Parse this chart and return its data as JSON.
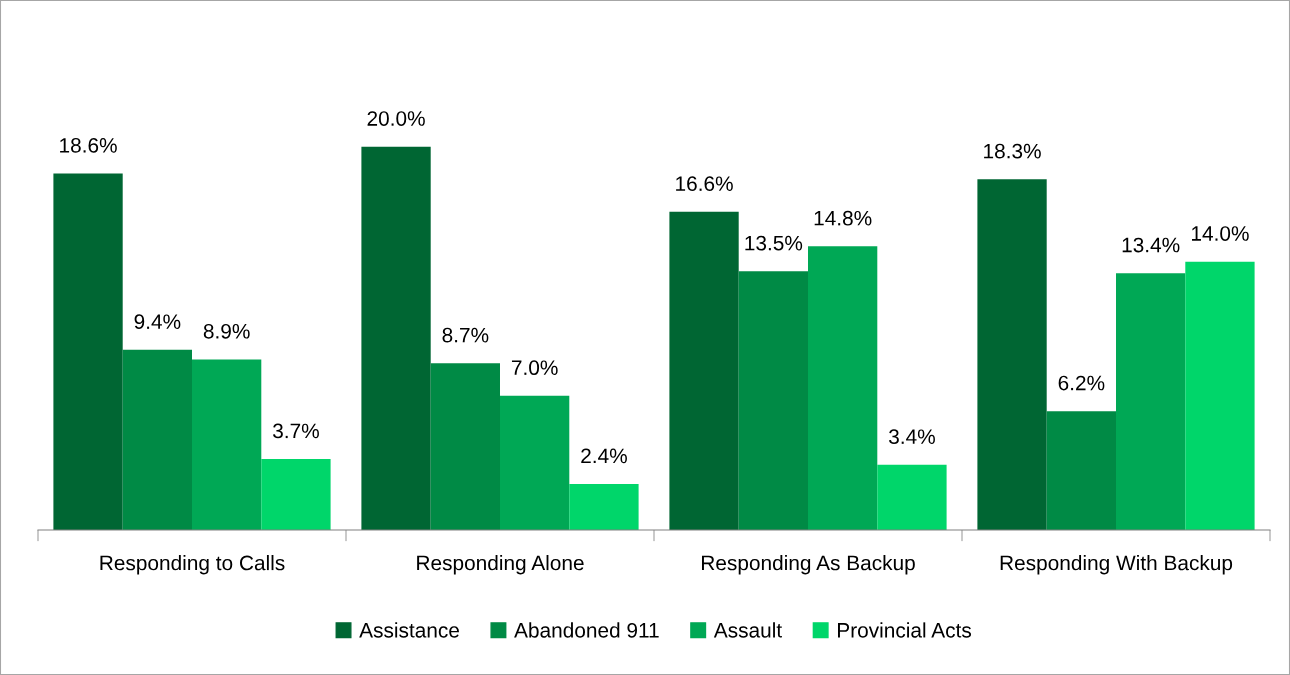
{
  "chart_data": {
    "type": "bar",
    "categories": [
      "Responding to Calls",
      "Responding Alone",
      "Responding As Backup",
      "Responding With Backup"
    ],
    "series": [
      {
        "name": "Assistance",
        "color": "#006633",
        "values": [
          18.6,
          20.0,
          16.6,
          18.3
        ],
        "value_labels": [
          "18.6%",
          "20.0%",
          "16.6%",
          "18.3%"
        ]
      },
      {
        "name": "Abandoned 911",
        "color": "#008a45",
        "values": [
          9.4,
          8.7,
          13.5,
          6.2
        ],
        "value_labels": [
          "9.4%",
          "8.7%",
          "13.5%",
          "6.2%"
        ]
      },
      {
        "name": "Assault",
        "color": "#00a855",
        "values": [
          8.9,
          7.0,
          14.8,
          13.4
        ],
        "value_labels": [
          "8.9%",
          "7.0%",
          "14.8%",
          "13.4%"
        ]
      },
      {
        "name": "Provincial Acts",
        "color": "#00d66a",
        "values": [
          3.7,
          2.4,
          3.4,
          14.0
        ],
        "value_labels": [
          "3.7%",
          "2.4%",
          "3.4%",
          "14.0%"
        ]
      }
    ],
    "legend": "bottom",
    "grid": false
  }
}
